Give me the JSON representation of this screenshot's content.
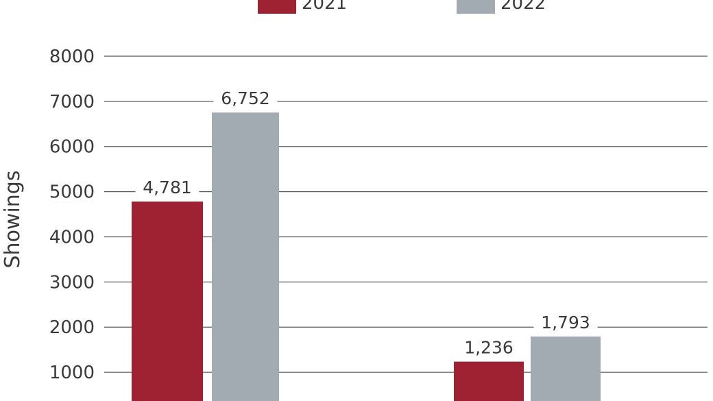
{
  "chart_data": {
    "type": "bar",
    "title": "",
    "xlabel": "",
    "ylabel": "Showings",
    "ylim": [
      0,
      8000
    ],
    "yticks": [
      1000,
      2000,
      3000,
      4000,
      5000,
      6000,
      7000,
      8000
    ],
    "ytick_labels": [
      "1000",
      "2000",
      "3000",
      "4000",
      "5000",
      "6000",
      "7000",
      "8000"
    ],
    "grid": true,
    "legend_position": "top",
    "categories": [
      "",
      ""
    ],
    "series": [
      {
        "name": "2021",
        "color": "#9e2232",
        "values": [
          4781,
          1236
        ],
        "labels": [
          "4,781",
          "1,236"
        ]
      },
      {
        "name": "2022",
        "color": "#a2abb1",
        "values": [
          6752,
          1793
        ],
        "labels": [
          "6,752",
          "1,793"
        ]
      }
    ]
  }
}
